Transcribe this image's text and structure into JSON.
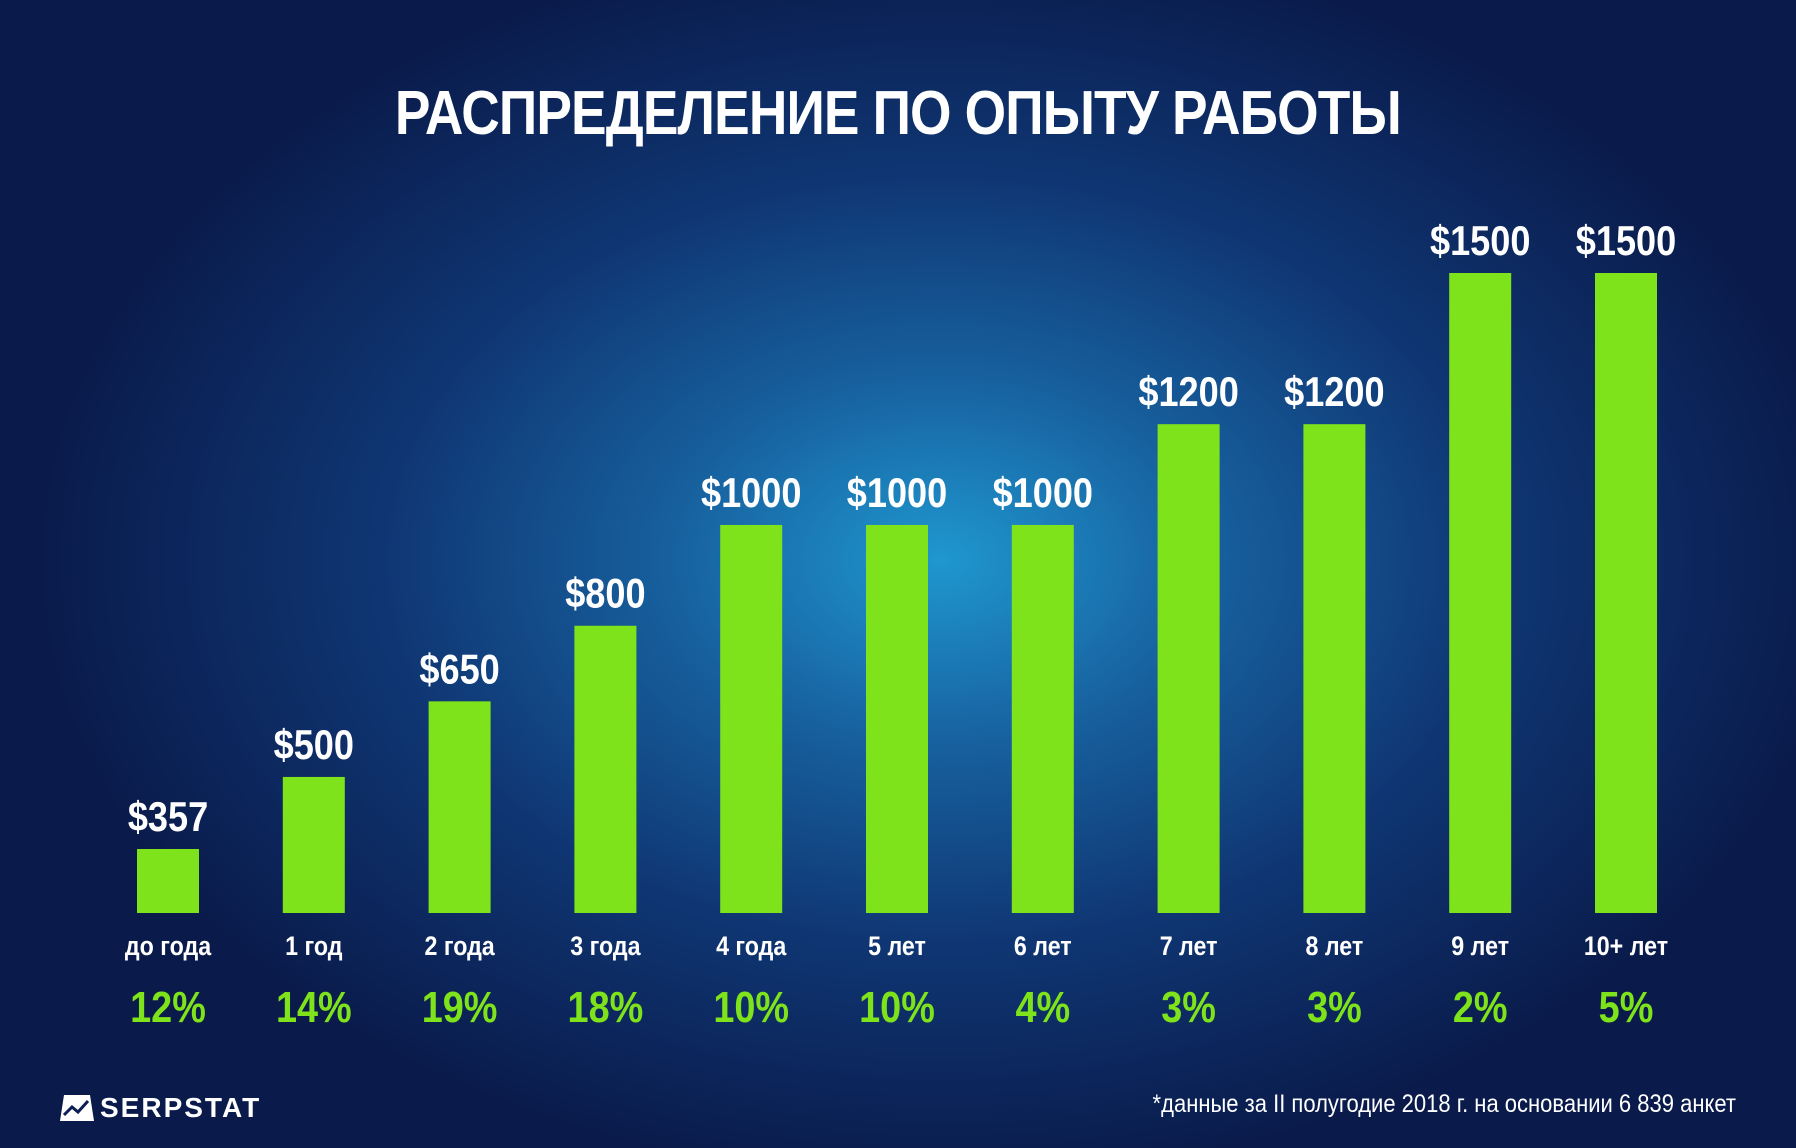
{
  "colors": {
    "bar": "#7ee31a",
    "text": "#ffffff",
    "percent": "#7ee31a"
  },
  "logo": {
    "text": "SERPSTAT",
    "icon": "serpstat-logo-icon"
  },
  "footnote": "*данные за II полугодие 2018 г. на основании 6 839 анкет",
  "chart_data": {
    "type": "bar",
    "title": "РАСПРЕДЕЛЕНИЕ ПО ОПЫТУ РАБОТЫ",
    "categories": [
      "до года",
      "1 год",
      "2 года",
      "3 года",
      "4 года",
      "5 лет",
      "6 лет",
      "7 лет",
      "8 лет",
      "9 лет",
      "10+ лет"
    ],
    "values": [
      357,
      500,
      650,
      800,
      1000,
      1000,
      1000,
      1200,
      1200,
      1500,
      1500
    ],
    "value_labels": [
      "$357",
      "$500",
      "$650",
      "$800",
      "$1000",
      "$1000",
      "$1000",
      "$1200",
      "$1200",
      "$1500",
      "$1500"
    ],
    "shares": [
      "12%",
      "14%",
      "19%",
      "18%",
      "10%",
      "10%",
      "4%",
      "3%",
      "3%",
      "2%",
      "5%"
    ],
    "xlabel": "",
    "ylabel": "",
    "grid": false,
    "legend": "none"
  }
}
